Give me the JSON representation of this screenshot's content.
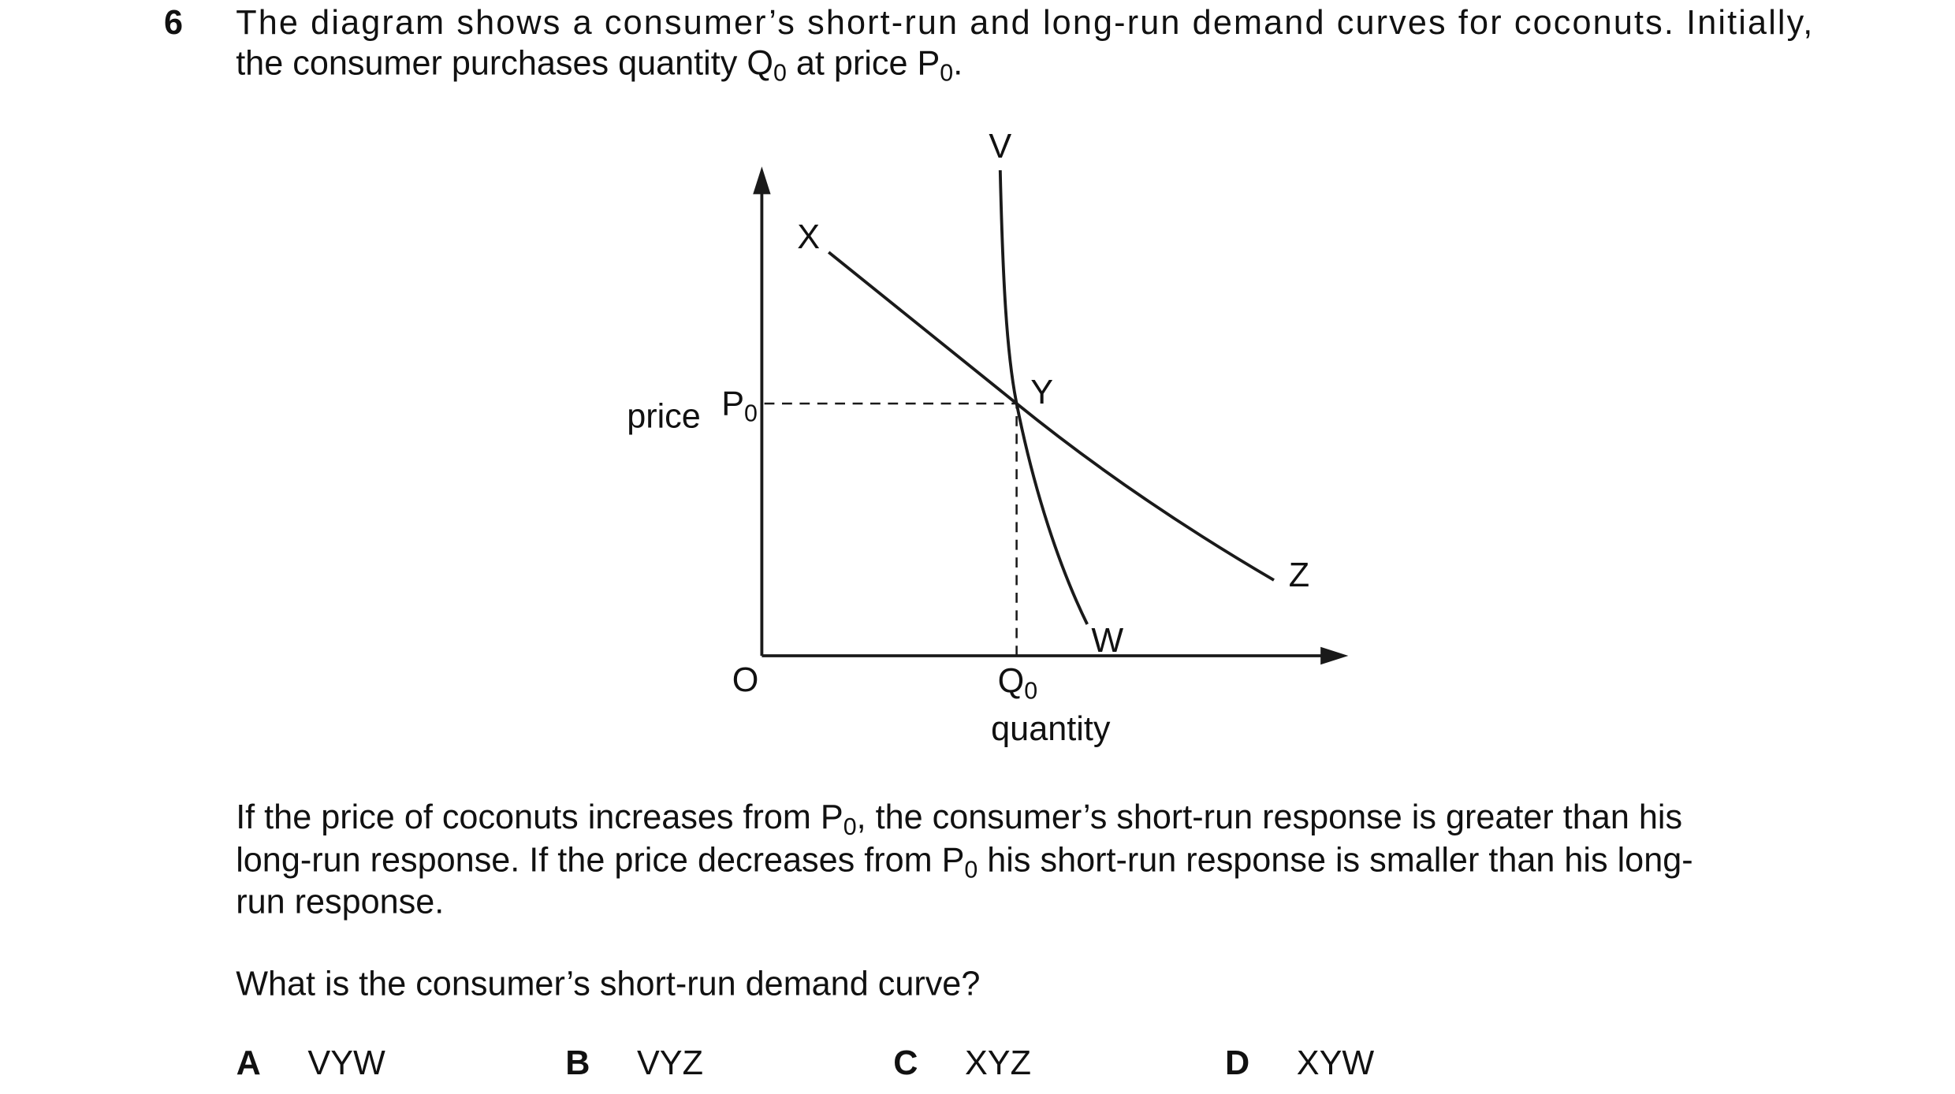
{
  "question_number": "6",
  "intro": {
    "lines": [
      [
        "The diagram shows a consumer’s short-run and long-run demand curves for coconuts. Initially,"
      ],
      [
        "the consumer purchases quantity Q",
        "0",
        " at price P",
        "0",
        "."
      ]
    ]
  },
  "diagram": {
    "labels": {
      "v": "V",
      "x": "X",
      "y": "Y",
      "z": "Z",
      "w": "W",
      "price": "price",
      "p0": [
        "P",
        "0"
      ],
      "origin": "O",
      "q0": [
        "Q",
        "0"
      ],
      "quantity": "quantity"
    }
  },
  "body": {
    "lines": [
      [
        "If the price of coconuts increases from P",
        "0",
        ", the consumer’s short-run response is greater than his"
      ],
      [
        "long-run response. If the price decreases from P",
        "0",
        " his short-run response is smaller than his long-"
      ],
      [
        "run response."
      ]
    ]
  },
  "question": "What is the consumer’s short-run demand curve?",
  "options": [
    {
      "letter": "A",
      "text": "VYW"
    },
    {
      "letter": "B",
      "text": "VYZ"
    },
    {
      "letter": "C",
      "text": "XYZ"
    },
    {
      "letter": "D",
      "text": "XYW"
    }
  ]
}
